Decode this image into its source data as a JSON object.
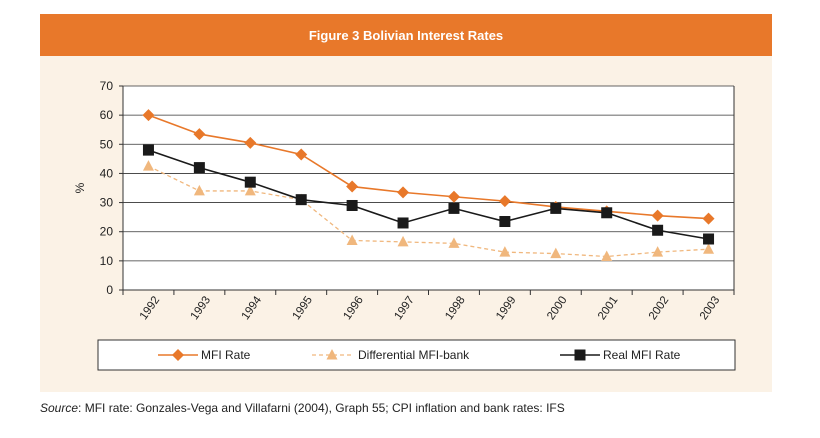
{
  "chart_data": {
    "type": "line",
    "title": "Figure 3  Bolivian Interest Rates",
    "ylabel": "%",
    "xlabel": "",
    "ylim": [
      0,
      70
    ],
    "yticks": [
      0,
      10,
      20,
      30,
      40,
      50,
      60,
      70
    ],
    "categories": [
      "1992",
      "1993",
      "1994",
      "1995",
      "1996",
      "1997",
      "1998",
      "1999",
      "2000",
      "2001",
      "2002",
      "2003"
    ],
    "series": [
      {
        "name": "MFI Rate",
        "color": "#e8782a",
        "marker": "diamond",
        "dashed": false,
        "values": [
          60,
          53.5,
          50.5,
          46.5,
          35.5,
          33.5,
          32,
          30.5,
          28.5,
          27,
          25.5,
          24.5
        ]
      },
      {
        "name": "Differential MFI-bank",
        "color": "#f0b77d",
        "marker": "triangle",
        "dashed": true,
        "values": [
          42.5,
          34,
          34,
          31,
          17,
          16.5,
          16,
          13,
          12.5,
          11.5,
          13,
          14
        ]
      },
      {
        "name": "Real MFI Rate",
        "color": "#1a1a1a",
        "marker": "square",
        "dashed": false,
        "values": [
          48,
          42,
          37,
          31,
          29,
          23,
          28,
          23.5,
          28,
          26.5,
          20.5,
          17.5
        ]
      }
    ],
    "legend_position": "bottom",
    "grid": true
  },
  "source": {
    "prefix": "Source",
    "text": ": MFI rate: Gonzales-Vega and Villafarni (2004), Graph 55; CPI inflation and bank rates: IFS"
  }
}
